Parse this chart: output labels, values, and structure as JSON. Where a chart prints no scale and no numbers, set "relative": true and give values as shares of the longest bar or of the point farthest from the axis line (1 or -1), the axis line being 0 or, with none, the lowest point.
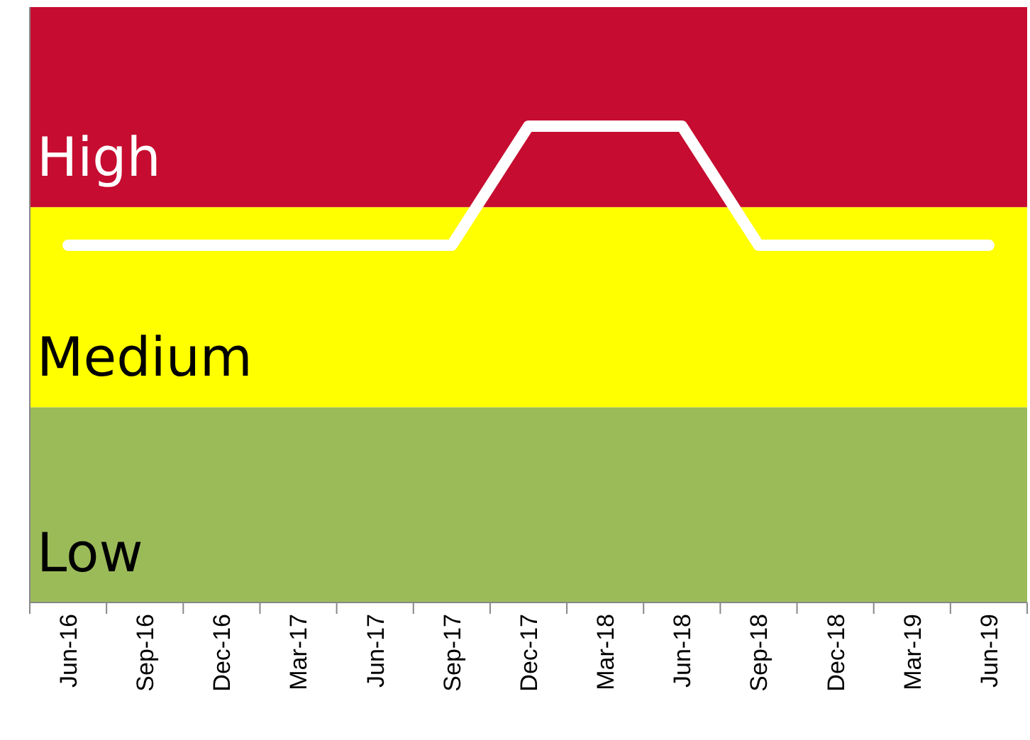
{
  "chart_data": {
    "type": "line",
    "relative": true,
    "categories": [
      "Jun-16",
      "Sep-16",
      "Dec-16",
      "Mar-17",
      "Jun-17",
      "Sep-17",
      "Dec-17",
      "Mar-18",
      "Jun-18",
      "Sep-18",
      "Dec-18",
      "Mar-19",
      "Jun-19"
    ],
    "series": [
      {
        "color": "#ffffff",
        "values": [
          0.75,
          0.75,
          0.75,
          0.75,
          0.75,
          0.75,
          1,
          1,
          1,
          0.75,
          0.75,
          0.75,
          0.75
        ]
      }
    ],
    "bands": [
      {
        "axis": "y",
        "from": 0,
        "to": 0.41,
        "label": "Low",
        "color": "#9bbb59"
      },
      {
        "axis": "y",
        "from": 0.41,
        "to": 0.83,
        "label": "Medium",
        "color": "#ffff00"
      },
      {
        "axis": "y",
        "from": 0.83,
        "to": 1.25,
        "label": "High",
        "color": "#c60c30"
      }
    ]
  }
}
